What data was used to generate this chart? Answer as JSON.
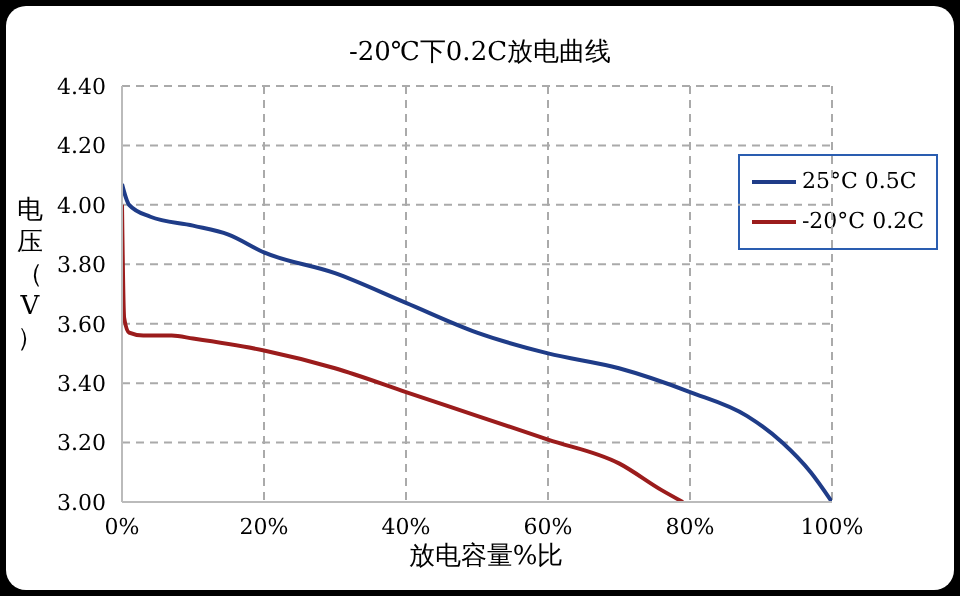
{
  "chart_data": {
    "type": "line",
    "title": "-20℃下0.2C放电曲线",
    "xlabel": "放电容量%比",
    "ylabel": "电压（V）",
    "series": [
      {
        "name": "25°C 0.5C",
        "color": "#1f3c88",
        "x": [
          0,
          1,
          4,
          10,
          15,
          20,
          30,
          40,
          50,
          60,
          70,
          80,
          88,
          93,
          97,
          100
        ],
        "values": [
          4.07,
          4.0,
          3.96,
          3.93,
          3.9,
          3.84,
          3.77,
          3.67,
          3.57,
          3.5,
          3.45,
          3.37,
          3.29,
          3.2,
          3.1,
          3.0
        ]
      },
      {
        "name": "-20°C 0.2C",
        "color": "#9b1c1c",
        "x": [
          0,
          0.3,
          1,
          3,
          7,
          10,
          20,
          30,
          40,
          50,
          60,
          70,
          76,
          79
        ],
        "values": [
          4.0,
          3.62,
          3.57,
          3.56,
          3.56,
          3.55,
          3.51,
          3.45,
          3.37,
          3.29,
          3.21,
          3.13,
          3.04,
          3.0
        ]
      }
    ],
    "xlim": [
      0,
      100
    ],
    "xticks": [
      {
        "value": 0,
        "label": "0%"
      },
      {
        "value": 20,
        "label": "20%"
      },
      {
        "value": 40,
        "label": "40%"
      },
      {
        "value": 60,
        "label": "60%"
      },
      {
        "value": 80,
        "label": "80%"
      },
      {
        "value": 100,
        "label": "100%"
      }
    ],
    "ylim": [
      3.0,
      4.4
    ],
    "yticks": [
      {
        "value": 3.0,
        "label": "3.00"
      },
      {
        "value": 3.2,
        "label": "3.20"
      },
      {
        "value": 3.4,
        "label": "3.40"
      },
      {
        "value": 3.6,
        "label": "3.60"
      },
      {
        "value": 3.8,
        "label": "3.80"
      },
      {
        "value": 4.0,
        "label": "4.00"
      },
      {
        "value": 4.2,
        "label": "4.20"
      },
      {
        "value": 4.4,
        "label": "4.40"
      }
    ],
    "grid": true,
    "legend": "top right",
    "marker": "none",
    "line_style": "solid"
  }
}
